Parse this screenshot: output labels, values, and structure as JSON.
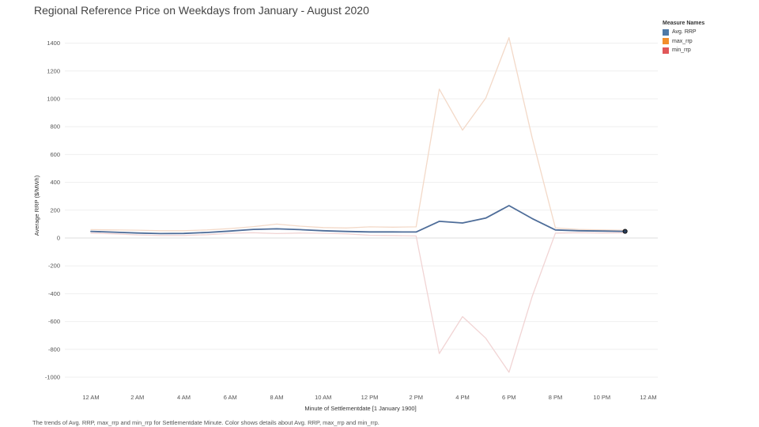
{
  "chart_data": {
    "type": "line",
    "title": "Regional Reference Price on Weekdays from January - August 2020",
    "xlabel": "Minute of Settlementdate [1 January 1900]",
    "ylabel": "Average RRP ($/MWh)",
    "xlim": [
      0,
      24
    ],
    "ylim": [
      -1080,
      1520
    ],
    "x_ticks": [
      {
        "value": 0,
        "label": "12 AM"
      },
      {
        "value": 2,
        "label": "2 AM"
      },
      {
        "value": 4,
        "label": "4 AM"
      },
      {
        "value": 6,
        "label": "6 AM"
      },
      {
        "value": 8,
        "label": "8 AM"
      },
      {
        "value": 10,
        "label": "10 AM"
      },
      {
        "value": 12,
        "label": "12 PM"
      },
      {
        "value": 14,
        "label": "2 PM"
      },
      {
        "value": 16,
        "label": "4 PM"
      },
      {
        "value": 18,
        "label": "6 PM"
      },
      {
        "value": 20,
        "label": "8 PM"
      },
      {
        "value": 22,
        "label": "10 PM"
      },
      {
        "value": 24,
        "label": "12 AM"
      }
    ],
    "y_ticks": [
      1400,
      1200,
      1000,
      800,
      600,
      400,
      200,
      0,
      -200,
      -400,
      -600,
      -800,
      -1000
    ],
    "grid": true,
    "legend_title": "Measure Names",
    "legend_position": "top-right",
    "series": [
      {
        "name": "Avg. RRP",
        "color": "#4e6d99",
        "legend_color": "#4e79a7",
        "width": 1.8,
        "x": [
          0,
          1,
          2,
          3,
          4,
          5,
          6,
          7,
          8,
          9,
          10,
          11,
          12,
          13,
          14,
          15,
          16,
          17,
          18,
          19,
          20,
          21,
          22,
          23
        ],
        "y": [
          48,
          42,
          36,
          32,
          33,
          40,
          50,
          62,
          66,
          60,
          52,
          47,
          44,
          44,
          43,
          120,
          108,
          143,
          233,
          140,
          58,
          52,
          50,
          48
        ]
      },
      {
        "name": "max_rrp",
        "color": "#f3d9c8",
        "legend_color": "#f28e2b",
        "width": 1.3,
        "x": [
          0,
          1,
          2,
          3,
          4,
          5,
          6,
          7,
          8,
          9,
          10,
          11,
          12,
          13,
          14,
          15,
          16,
          17,
          18,
          19,
          20,
          21,
          22,
          23
        ],
        "y": [
          60,
          58,
          56,
          52,
          52,
          58,
          68,
          82,
          100,
          85,
          75,
          72,
          80,
          78,
          80,
          1070,
          775,
          1005,
          1440,
          720,
          72,
          62,
          58,
          55
        ]
      },
      {
        "name": "min_rrp",
        "color": "#f1d4d4",
        "legend_color": "#e15759",
        "width": 1.3,
        "x": [
          0,
          1,
          2,
          3,
          4,
          5,
          6,
          7,
          8,
          9,
          10,
          11,
          12,
          13,
          14,
          15,
          16,
          17,
          18,
          19,
          20,
          21,
          22,
          23
        ],
        "y": [
          35,
          30,
          22,
          18,
          18,
          24,
          34,
          38,
          32,
          36,
          34,
          30,
          20,
          18,
          15,
          -830,
          -565,
          -720,
          -965,
          -420,
          35,
          38,
          36,
          38
        ]
      }
    ],
    "end_marker": {
      "series": "Avg. RRP",
      "x": 23,
      "y": 48
    }
  },
  "caption": "The trends of Avg. RRP, max_rrp and min_rrp for Settlementdate Minute.  Color shows details about Avg. RRP, max_rrp and min_rrp."
}
